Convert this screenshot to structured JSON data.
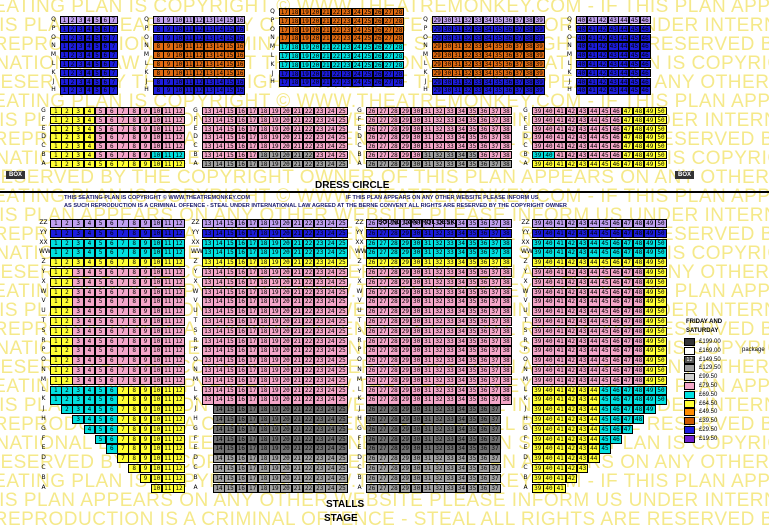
{
  "watermark": {
    "lines": [
      "SEATING PLAN IS COPYRIGHT © WWW.THEATREMONKEY.COM - IF THIS PLAN APPEARS ON",
      "OF THIS PLAN APPEARS ON ANY OTHER WEBSITE PLEASE INFORM US",
      "AS SUCH REPRODUCTION IS A CRIMINAL OFFENCE - STEAL",
      "UNDER INTERNATIONAL LAW AGREED AT THE BERNE CONVENTION",
      "ALL RIGHTS ARE RESERVED BY THE COPYRIGHT OWNER"
    ]
  },
  "labels": {
    "dress_circle": "DRESS CIRCLE",
    "stalls": "STALLS",
    "stage": "STAGE",
    "sound_desk": "SOUND CONTROL DESK",
    "box_left": "BOX",
    "box_right": "BOX",
    "copyright_1": "THIS SEATING PLAN IS COPYRIGHT © WWW.THEATREMONKEY.COM",
    "copyright_2": "IF THIS PLAN APPEARS ON ANY OTHER WEBSITE PLEASE INFORM US",
    "copyright_3": "AS SUCH REPRODUCTION IS A CRIMINAL OFFENCE - STEAL UNDER INTERNATIONAL LAW AGREED AT THE BERNE CONVENT ALL RIGHTS ARE RESERVED BY THE COPYRIGHT OWNER"
  },
  "legend": {
    "title_1": "FRIDAY AND",
    "title_2": "SATURDAY",
    "package_label": "package",
    "items": [
      {
        "price": "£199.00",
        "color": "#333333"
      },
      {
        "price": "£169.00",
        "color": "#ffffff"
      },
      {
        "price": "£149.50",
        "color": "#555555",
        "badge": "12"
      },
      {
        "price": "£129.50",
        "color": "#a0a0a0"
      },
      {
        "price": "£99.50",
        "color": "#d0d0d0"
      },
      {
        "price": "£79.50",
        "color": "#f4a6c8"
      },
      {
        "price": "£69.50",
        "color": "#00e0e0"
      },
      {
        "price": "£64.50",
        "color": "#ffff33"
      },
      {
        "price": "£49.50",
        "color": "#ff8c00"
      },
      {
        "price": "£39.50",
        "color": "#cc5a00"
      },
      {
        "price": "£29.50",
        "color": "#1c1cdd"
      },
      {
        "price": "£19.50",
        "color": "#7020d0"
      }
    ]
  },
  "colors": {
    "pink": "#f4a6c8",
    "cyan": "#00e0e0",
    "yellow": "#ffff33",
    "blue": "#1c1cdd",
    "purple": "#c0a0f0",
    "orange": "#e06a10",
    "grey": "#a0a0a0",
    "darkgrey": "#707070"
  },
  "blocks": [
    {
      "section": "grand-circle",
      "rows": [
        "Q",
        "P",
        "O",
        "N",
        "M",
        "L",
        "K",
        "J",
        "H"
      ],
      "start": 1,
      "count": 7,
      "color": "blue",
      "firstColor": "purple"
    },
    {
      "section": "grand-circle",
      "rows": [
        "Q",
        "P",
        "O",
        "N",
        "M",
        "L",
        "K",
        "J",
        "H"
      ],
      "start": 8,
      "count": 9,
      "color": "blue",
      "firstColor": "purple",
      "orangeRows": [
        "N",
        "M",
        "L",
        "K"
      ]
    },
    {
      "section": "grand-circle",
      "rows": [
        "Q",
        "P",
        "O",
        "N",
        "M",
        "L",
        "K",
        "J",
        "H"
      ],
      "start": 17,
      "count": 12,
      "color": "blue",
      "firstColor": "orange",
      "orangeRows": [
        "P",
        "O",
        "N"
      ],
      "cyanRows": [
        "M",
        "L",
        "K"
      ]
    },
    {
      "section": "grand-circle",
      "rows": [
        "Q",
        "P",
        "O",
        "N",
        "M",
        "L",
        "K",
        "J",
        "H"
      ],
      "start": 29,
      "count": 11,
      "color": "blue",
      "firstColor": "purple",
      "orangeRows": [
        "N",
        "M",
        "L",
        "K"
      ]
    },
    {
      "section": "grand-circle",
      "rows": [
        "Q",
        "P",
        "O",
        "N",
        "M",
        "L",
        "K",
        "J",
        "H"
      ],
      "start": 40,
      "count": 7,
      "color": "blue",
      "firstColor": "purple"
    },
    {
      "section": "dress-circle",
      "rows": [
        "G",
        "F",
        "E",
        "D",
        "C",
        "B",
        "A"
      ],
      "start": 1,
      "count": 12,
      "color": "pink",
      "firstColor": "yellow"
    },
    {
      "section": "dress-circle",
      "rows": [
        "G",
        "F",
        "E",
        "D",
        "C",
        "B",
        "A"
      ],
      "start": 13,
      "count": 13,
      "color": "pink",
      "greyTail": true
    },
    {
      "section": "dress-circle",
      "rows": [
        "G",
        "F",
        "E",
        "D",
        "C",
        "B",
        "A"
      ],
      "start": 26,
      "count": 13,
      "color": "pink",
      "greyTail": true
    },
    {
      "section": "dress-circle",
      "rows": [
        "G",
        "F",
        "E",
        "D",
        "C",
        "B",
        "A"
      ],
      "start": 39,
      "count": 12,
      "color": "pink",
      "firstColor": "yellow"
    },
    {
      "section": "stalls",
      "rows": [
        "ZZ",
        "YY",
        "XX",
        "WW",
        "Z",
        "Y",
        "X",
        "W",
        "V",
        "U",
        "T",
        "S",
        "R",
        "P",
        "O",
        "N",
        "M",
        "L",
        "K",
        "J",
        "H",
        "G",
        "F",
        "E",
        "D",
        "C",
        "B",
        "A"
      ],
      "start": 1,
      "count": 12,
      "color": "pink",
      "firstColor": "yellow"
    },
    {
      "section": "stalls",
      "rows": [
        "ZZ",
        "YY",
        "XX",
        "WW",
        "Z",
        "Y",
        "X",
        "W",
        "V",
        "U",
        "T",
        "S",
        "R",
        "P",
        "O",
        "N",
        "M",
        "L",
        "K",
        "J",
        "H",
        "G",
        "F",
        "E",
        "D",
        "C",
        "B",
        "A"
      ],
      "start": 13,
      "count": 13,
      "color": "pink",
      "greyTail": true
    },
    {
      "section": "stalls",
      "rows": [
        "ZZ",
        "YY",
        "XX",
        "WW",
        "Z",
        "Y",
        "X",
        "W",
        "V",
        "U",
        "T",
        "S",
        "R",
        "P",
        "O",
        "N",
        "M",
        "L",
        "K",
        "J",
        "H",
        "G",
        "F",
        "E",
        "D",
        "C",
        "B",
        "A"
      ],
      "start": 26,
      "count": 13,
      "color": "pink",
      "greyTail": true
    },
    {
      "section": "stalls",
      "rows": [
        "ZZ",
        "YY",
        "XX",
        "WW",
        "Z",
        "Y",
        "X",
        "W",
        "V",
        "U",
        "T",
        "S",
        "R",
        "P",
        "O",
        "N",
        "M",
        "L",
        "K",
        "J",
        "H",
        "G",
        "F",
        "E",
        "D",
        "C",
        "B",
        "A"
      ],
      "start": 39,
      "count": 12,
      "color": "pink",
      "firstColor": "yellow"
    }
  ]
}
